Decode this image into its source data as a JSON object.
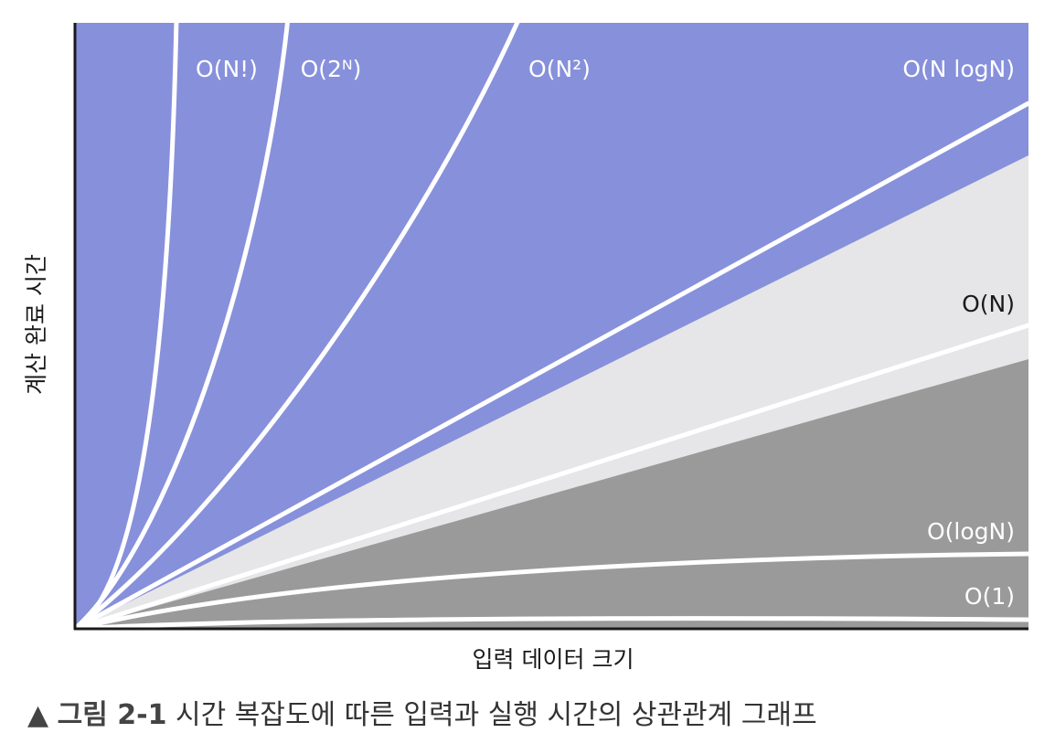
{
  "chart_data": {
    "type": "area",
    "title": "",
    "xlabel": "입력 데이터 크기",
    "ylabel": "계산 완료 시간",
    "grid": false,
    "legend": "none",
    "series": [
      {
        "name": "O(N!)",
        "label_color": "#ffffff"
      },
      {
        "name": "O(2ᴺ)",
        "label_color": "#ffffff"
      },
      {
        "name": "O(N²)",
        "label_color": "#ffffff"
      },
      {
        "name": "O(N logN)",
        "label_color": "#ffffff"
      },
      {
        "name": "O(N)",
        "label_color": "#1a1a1a"
      },
      {
        "name": "O(logN)",
        "label_color": "#ffffff"
      },
      {
        "name": "O(1)",
        "label_color": "#ffffff"
      }
    ],
    "region_colors": {
      "bad": "#8790db",
      "fair": "#e6e6e8",
      "good": "#9a9a9a",
      "curve": "#ffffff",
      "axis": "#1a1a1a"
    }
  },
  "caption": {
    "marker": "▲",
    "figure_number": "그림 2-1",
    "text": "시간 복잡도에 따른 입력과 실행 시간의 상관관계 그래프"
  }
}
